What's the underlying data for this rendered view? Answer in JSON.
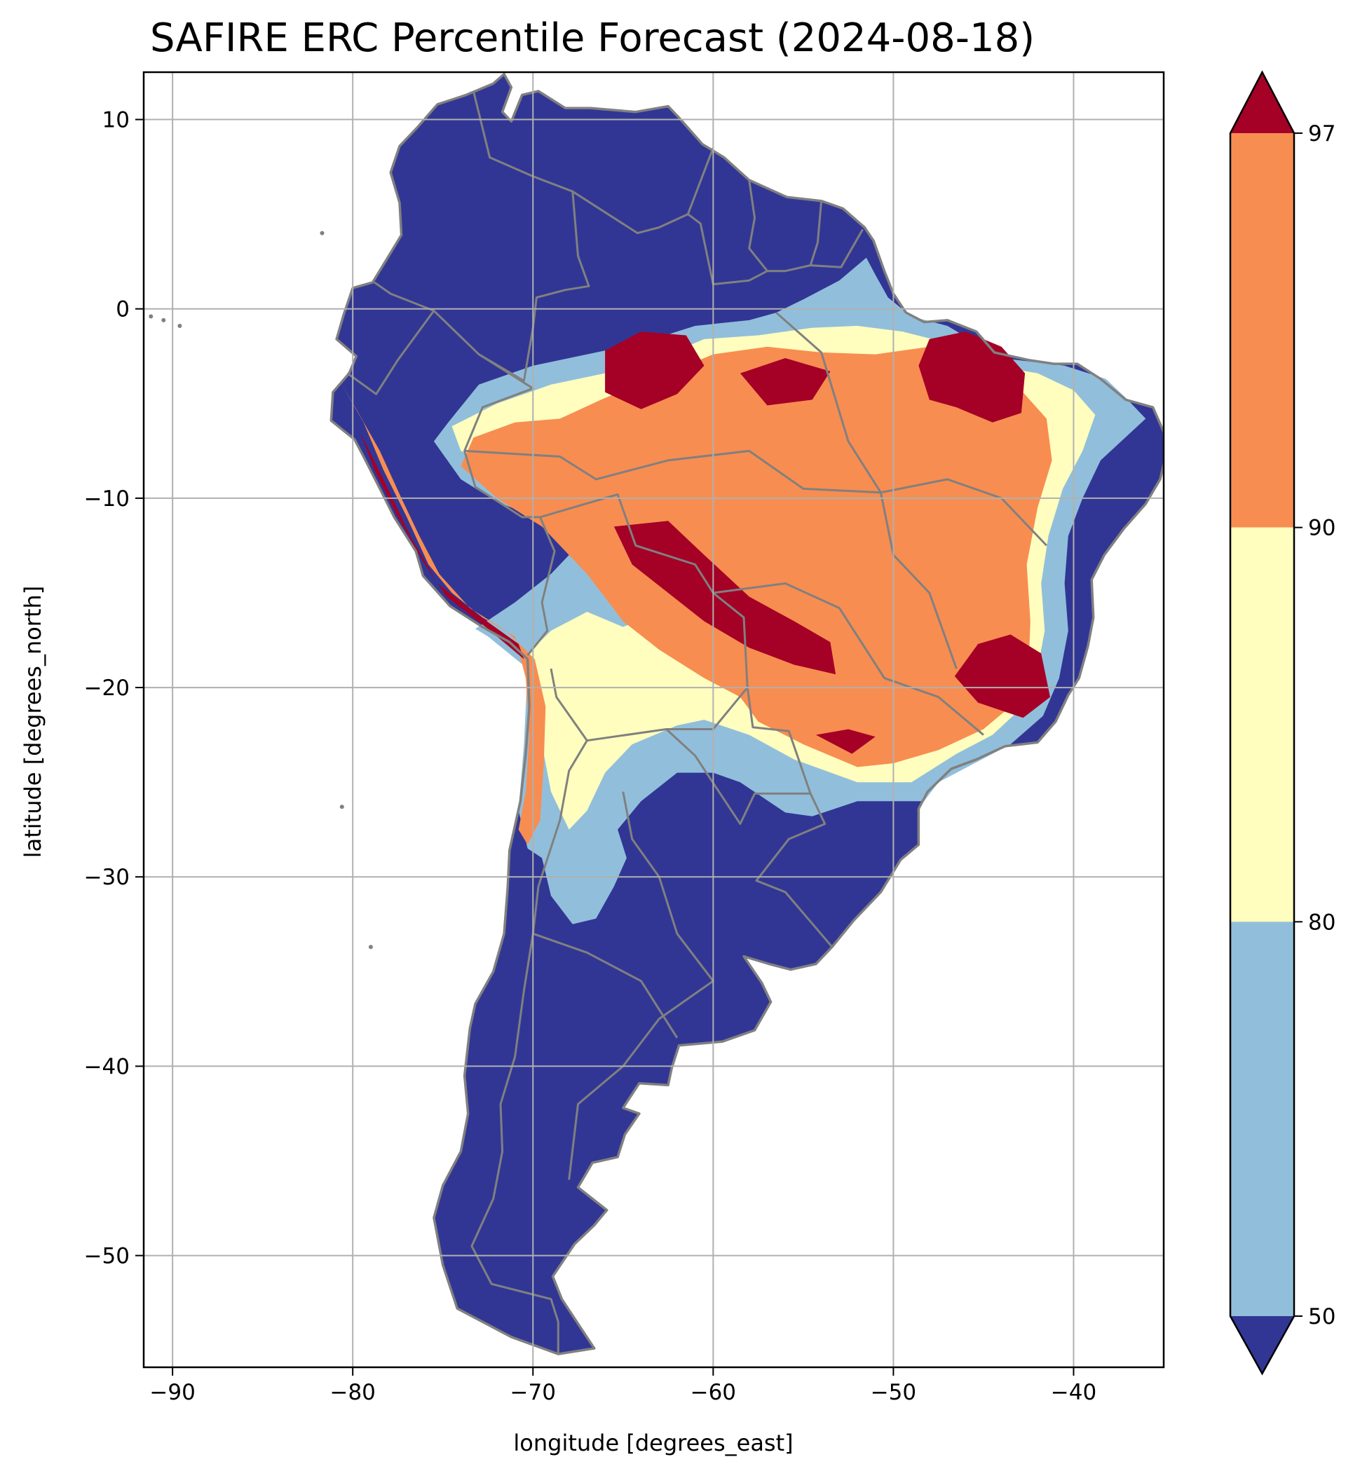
{
  "title": "SAFIRE ERC Percentile Forecast (2024-08-18)",
  "map": {
    "type": "map",
    "xlabel": "longitude [degrees_east]",
    "ylabel": "latitude [degrees_north]",
    "xlim": [
      -91.6,
      -35.0
    ],
    "ylim": [
      -55.9,
      12.5
    ],
    "xticks": [
      -90,
      -80,
      -70,
      -60,
      -50,
      -40
    ],
    "xtick_labels": [
      "−90",
      "−80",
      "−70",
      "−60",
      "−50",
      "−40"
    ],
    "yticks": [
      10,
      0,
      -10,
      -20,
      -30,
      -40,
      -50
    ],
    "ytick_labels": [
      "10",
      "0",
      "−10",
      "−20",
      "−30",
      "−40",
      "−50"
    ],
    "grid": true,
    "region": "South America",
    "colors": {
      "below_50": "#313695",
      "p50_80": "#91bfdb",
      "p80_90": "#fffebe",
      "p90_97": "#f88d51",
      "above_97": "#a50026",
      "borders": "#808080",
      "grid": "#b0b0b0"
    }
  },
  "colorbar": {
    "ticks": [
      50,
      80,
      90,
      97
    ],
    "tick_labels": [
      "50",
      "80",
      "90",
      "97"
    ],
    "extend": "both"
  }
}
